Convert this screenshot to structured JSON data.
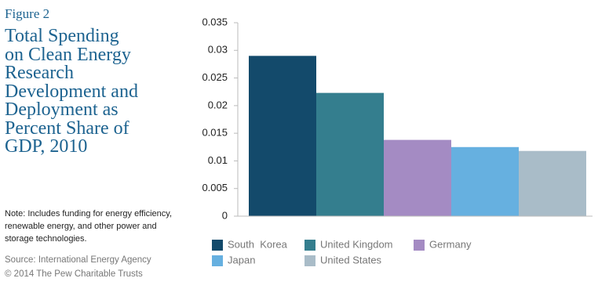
{
  "figure_label": "Figure 2",
  "title_lines": [
    "Total Spending",
    "on Clean Energy",
    "Research",
    "Development and",
    "Deployment as",
    "Percent Share of",
    "GDP, 2010"
  ],
  "note": "Note: Includes funding for energy efficiency, renewable energy, and other power and storage technologies.",
  "source": "Source: International Energy Agency",
  "copyright": "© 2014 The Pew Charitable Trusts",
  "chart_data": {
    "type": "bar",
    "categories": [
      "South  Korea",
      "United Kingdom",
      "Germany",
      "Japan",
      "United States"
    ],
    "values": [
      0.029,
      0.0223,
      0.0138,
      0.0125,
      0.0118
    ],
    "colors": [
      "#134a6b",
      "#347e8e",
      "#a48bc3",
      "#66b0e0",
      "#a9bcc8"
    ],
    "ylim": [
      0,
      0.035
    ],
    "yticks": [
      0,
      0.005,
      0.01,
      0.015,
      0.02,
      0.025,
      0.03,
      0.035
    ],
    "grid": false
  }
}
